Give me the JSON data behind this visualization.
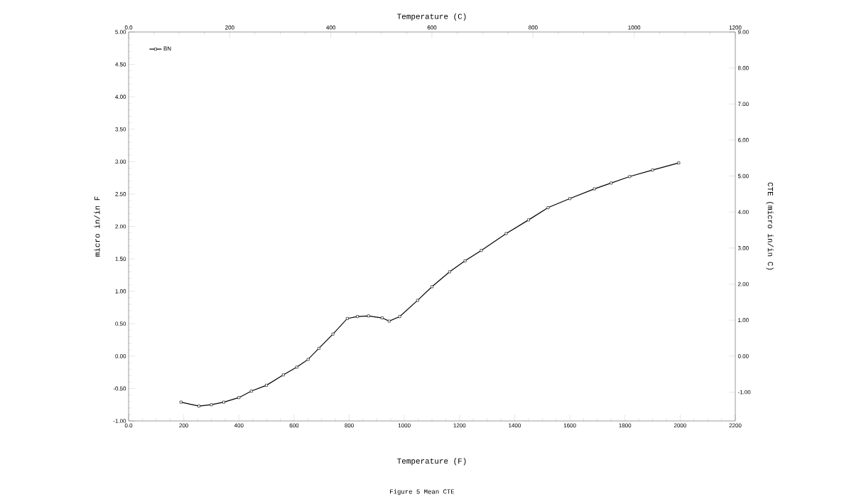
{
  "chart_data": {
    "type": "line",
    "xlabel": "Temperature (F)",
    "x2label": "Temperature (C)",
    "ylabel": "micro in/in F",
    "y2label": "CTE (micro in/in C)",
    "annotations": [
      "Figure 5  Mean CTE"
    ],
    "x": [
      190,
      255,
      300,
      345,
      400,
      445,
      500,
      561,
      610,
      651,
      690,
      741,
      793,
      830,
      870,
      919,
      945,
      983,
      1048,
      1100,
      1164,
      1220,
      1279,
      1369,
      1450,
      1521,
      1600,
      1689,
      1750,
      1817,
      1900,
      1995
    ],
    "series": [
      {
        "name": "BN",
        "color": "#000000",
        "values": [
          -0.71,
          -0.77,
          -0.75,
          -0.71,
          -0.64,
          -0.54,
          -0.45,
          -0.29,
          -0.17,
          -0.05,
          0.12,
          0.34,
          0.58,
          0.61,
          0.62,
          0.59,
          0.54,
          0.61,
          0.86,
          1.07,
          1.3,
          1.47,
          1.63,
          1.89,
          2.1,
          2.29,
          2.43,
          2.58,
          2.67,
          2.77,
          2.87,
          2.98
        ]
      }
    ],
    "marker": "square",
    "legend": "top left",
    "grid": false,
    "xlim": [
      0,
      2200
    ],
    "xticks": [
      {
        "value": 0,
        "label": "0.0"
      },
      200,
      400,
      600,
      800,
      1000,
      1200,
      1400,
      1600,
      1800,
      2000,
      2200
    ],
    "ylim": [
      -1,
      5
    ],
    "yticks": [
      {
        "value": -1,
        "label": "-1.00"
      },
      {
        "value": -0.5,
        "label": "-0.50"
      },
      {
        "value": 0,
        "label": "0.00"
      },
      {
        "value": 0.5,
        "label": "0.50"
      },
      {
        "value": 1,
        "label": "1.00"
      },
      {
        "value": 1.5,
        "label": "1.50"
      },
      {
        "value": 2,
        "label": "2.00"
      },
      {
        "value": 2.5,
        "label": "2.50"
      },
      {
        "value": 3,
        "label": "3.00"
      },
      {
        "value": 3.5,
        "label": "3.50"
      },
      {
        "value": 4,
        "label": "4.00"
      },
      {
        "value": 4.5,
        "label": "4.50"
      },
      {
        "value": 5,
        "label": "5.00"
      }
    ],
    "x2lim": [
      0,
      1200
    ],
    "x2ticks": [
      {
        "value": 0,
        "label": "0.0"
      },
      200,
      400,
      600,
      800,
      1000,
      1200
    ],
    "y2lim": [
      -1.8,
      9
    ],
    "y2ticks": [
      {
        "value": -1,
        "label": "-1.00"
      },
      {
        "value": 0,
        "label": "0.00"
      },
      {
        "value": 1,
        "label": "1.00"
      },
      {
        "value": 2,
        "label": "2.00"
      },
      {
        "value": 3,
        "label": "3.00"
      },
      {
        "value": 4,
        "label": "4.00"
      },
      {
        "value": 5,
        "label": "5.00"
      },
      {
        "value": 6,
        "label": "6.00"
      },
      {
        "value": 7,
        "label": "7.00"
      },
      {
        "value": 8,
        "label": "8.00"
      },
      {
        "value": 9,
        "label": "9.00"
      }
    ]
  }
}
